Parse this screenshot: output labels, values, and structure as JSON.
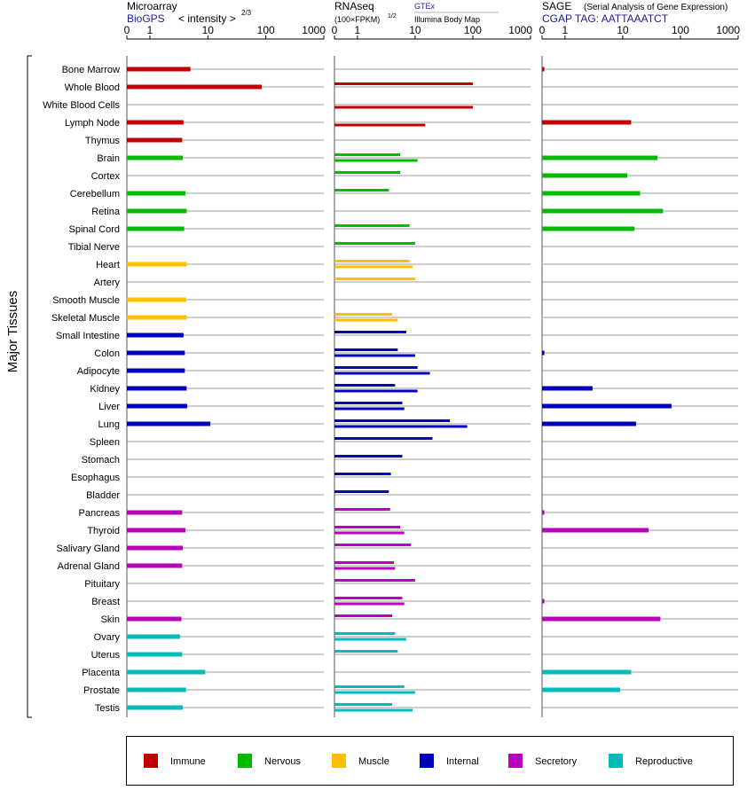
{
  "chart_data": {
    "type": "bar",
    "y_axis_label": "Major Tissues",
    "panels": [
      {
        "key": "microarray",
        "title": "Microarray",
        "subtitle": "BioGPS",
        "subtitle2": "< intensity >",
        "exponent": "2/3",
        "subtitle_color": "#1b1b99",
        "x_ticks": [
          "0",
          "1",
          "10",
          "100",
          "1000"
        ]
      },
      {
        "key": "rnaseq",
        "title": "RNAseq",
        "subtitle": "(100×FPKM)",
        "exponent": "1/2",
        "legend_gtex": "GTEx",
        "legend_ibm": "Illumina Body Map",
        "legend_color": "#1b1b99",
        "x_ticks": [
          "0",
          "1",
          "10",
          "100",
          "1000"
        ]
      },
      {
        "key": "sage",
        "title": "SAGE",
        "title_note": "(Serial Analysis of Gene Expression)",
        "subtitle": "CGAP  TAG: AATTAAATCT",
        "subtitle_color": "#1b1b99",
        "x_ticks": [
          "0",
          "1",
          "10",
          "100",
          "1000"
        ]
      }
    ],
    "categories": [
      {
        "key": "immune",
        "label": "Immune",
        "color": "#c00000"
      },
      {
        "key": "nervous",
        "label": "Nervous",
        "color": "#00bb00"
      },
      {
        "key": "muscle",
        "label": "Muscle",
        "color": "#ffbf00"
      },
      {
        "key": "internal",
        "label": "Internal",
        "color": "#0000bb"
      },
      {
        "key": "secretory",
        "label": "Secretory",
        "color": "#bb00bb"
      },
      {
        "key": "reproductive",
        "label": "Reproductive",
        "color": "#00bbbb"
      }
    ],
    "tissues": [
      {
        "name": "Bone Marrow",
        "cat": "immune",
        "microarray": 5,
        "gtex": null,
        "ibm": null,
        "sage": 0.1
      },
      {
        "name": "Whole Blood",
        "cat": "immune",
        "microarray": 85,
        "gtex": 100,
        "ibm": null,
        "sage": null
      },
      {
        "name": "White Blood Cells",
        "cat": "immune",
        "microarray": null,
        "gtex": null,
        "ibm": 100,
        "sage": null
      },
      {
        "name": "Lymph Node",
        "cat": "immune",
        "microarray": 3.8,
        "gtex": null,
        "ibm": 15,
        "sage": 14
      },
      {
        "name": "Thymus",
        "cat": "immune",
        "microarray": 3.6,
        "gtex": null,
        "ibm": null,
        "sage": null
      },
      {
        "name": "Brain",
        "cat": "nervous",
        "microarray": 3.7,
        "gtex": 5.5,
        "ibm": 11,
        "sage": 40
      },
      {
        "name": "Cortex",
        "cat": "nervous",
        "microarray": null,
        "gtex": 5.5,
        "ibm": null,
        "sage": 12
      },
      {
        "name": "Cerebellum",
        "cat": "nervous",
        "microarray": 4.1,
        "gtex": 3.5,
        "ibm": null,
        "sage": 20
      },
      {
        "name": "Retina",
        "cat": "nervous",
        "microarray": 4.3,
        "gtex": null,
        "ibm": null,
        "sage": 50
      },
      {
        "name": "Spinal Cord",
        "cat": "nervous",
        "microarray": 3.9,
        "gtex": 8,
        "ibm": null,
        "sage": 16
      },
      {
        "name": "Tibial Nerve",
        "cat": "nervous",
        "microarray": null,
        "gtex": 10,
        "ibm": null,
        "sage": null
      },
      {
        "name": "Heart",
        "cat": "muscle",
        "microarray": 4.3,
        "gtex": 8,
        "ibm": 9,
        "sage": 0.04
      },
      {
        "name": "Artery",
        "cat": "muscle",
        "microarray": null,
        "gtex": 10,
        "ibm": null,
        "sage": null
      },
      {
        "name": "Smooth Muscle",
        "cat": "muscle",
        "microarray": 4.2,
        "gtex": null,
        "ibm": null,
        "sage": null
      },
      {
        "name": "Skeletal Muscle",
        "cat": "muscle",
        "microarray": 4.3,
        "gtex": 4,
        "ibm": 5,
        "sage": 0.04
      },
      {
        "name": "Small Intestine",
        "cat": "internal",
        "microarray": 3.8,
        "gtex": 7,
        "ibm": null,
        "sage": null
      },
      {
        "name": "Colon",
        "cat": "internal",
        "microarray": 4,
        "gtex": 5,
        "ibm": 10,
        "sage": 0.1
      },
      {
        "name": "Adipocyte",
        "cat": "internal",
        "microarray": 4,
        "gtex": 11,
        "ibm": 18,
        "sage": null
      },
      {
        "name": "Kidney",
        "cat": "internal",
        "microarray": 4.3,
        "gtex": 4.5,
        "ibm": 11,
        "sage": 3
      },
      {
        "name": "Liver",
        "cat": "internal",
        "microarray": 4.4,
        "gtex": 6,
        "ibm": 6.5,
        "sage": 70
      },
      {
        "name": "Lung",
        "cat": "internal",
        "microarray": 11,
        "gtex": 40,
        "ibm": 80,
        "sage": 17
      },
      {
        "name": "Spleen",
        "cat": "internal",
        "microarray": null,
        "gtex": 20,
        "ibm": null,
        "sage": null
      },
      {
        "name": "Stomach",
        "cat": "internal",
        "microarray": null,
        "gtex": 6,
        "ibm": null,
        "sage": null
      },
      {
        "name": "Esophagus",
        "cat": "internal",
        "microarray": null,
        "gtex": 3.8,
        "ibm": null,
        "sage": null
      },
      {
        "name": "Bladder",
        "cat": "internal",
        "microarray": null,
        "gtex": 3.5,
        "ibm": null,
        "sage": null
      },
      {
        "name": "Pancreas",
        "cat": "secretory",
        "microarray": 3.6,
        "gtex": 3.7,
        "ibm": null,
        "sage": 0.1
      },
      {
        "name": "Thyroid",
        "cat": "secretory",
        "microarray": 4.1,
        "gtex": 5.5,
        "ibm": 6.5,
        "sage": 28
      },
      {
        "name": "Salivary Gland",
        "cat": "secretory",
        "microarray": 3.7,
        "gtex": 8.5,
        "ibm": null,
        "sage": null
      },
      {
        "name": "Adrenal Gland",
        "cat": "secretory",
        "microarray": 3.6,
        "gtex": 4.3,
        "ibm": 4.5,
        "sage": null
      },
      {
        "name": "Pituitary",
        "cat": "secretory",
        "microarray": null,
        "gtex": 10,
        "ibm": null,
        "sage": null
      },
      {
        "name": "Breast",
        "cat": "secretory",
        "microarray": null,
        "gtex": 6,
        "ibm": 6.5,
        "sage": 0.1
      },
      {
        "name": "Skin",
        "cat": "secretory",
        "microarray": 3.5,
        "gtex": 4,
        "ibm": null,
        "sage": 45
      },
      {
        "name": "Ovary",
        "cat": "reproductive",
        "microarray": 3.3,
        "gtex": 4.5,
        "ibm": 7,
        "sage": null
      },
      {
        "name": "Uterus",
        "cat": "reproductive",
        "microarray": 3.6,
        "gtex": 5,
        "ibm": null,
        "sage": null
      },
      {
        "name": "Placenta",
        "cat": "reproductive",
        "microarray": 9,
        "gtex": null,
        "ibm": null,
        "sage": 14
      },
      {
        "name": "Prostate",
        "cat": "reproductive",
        "microarray": 4.2,
        "gtex": 6.5,
        "ibm": 10,
        "sage": 9
      },
      {
        "name": "Testis",
        "cat": "reproductive",
        "microarray": 3.7,
        "gtex": 4,
        "ibm": 9,
        "sage": null
      }
    ]
  }
}
